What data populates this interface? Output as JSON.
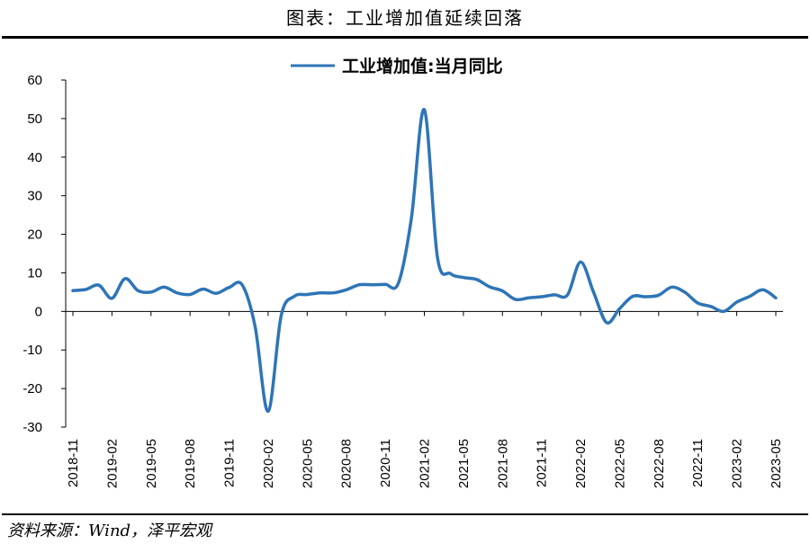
{
  "page_title": "图表：工业增加值延续回落",
  "source_note": "资料来源：Wind，泽平宏观",
  "colors": {
    "series": "#2e75b6",
    "axis": "#000000",
    "rule": "#000000"
  },
  "chart_data": {
    "type": "line",
    "title": "",
    "xlabel": "",
    "ylabel": "",
    "ylim": [
      -30,
      60
    ],
    "yticks": [
      -30,
      -20,
      -10,
      0,
      10,
      20,
      30,
      40,
      50,
      60
    ],
    "grid": false,
    "legend_position": "top-center",
    "x": [
      "2018-11",
      "2018-12",
      "2019-01",
      "2019-02",
      "2019-03",
      "2019-04",
      "2019-05",
      "2019-06",
      "2019-07",
      "2019-08",
      "2019-09",
      "2019-10",
      "2019-11",
      "2019-12",
      "2020-01",
      "2020-02",
      "2020-03",
      "2020-04",
      "2020-05",
      "2020-06",
      "2020-07",
      "2020-08",
      "2020-09",
      "2020-10",
      "2020-11",
      "2020-12",
      "2021-01",
      "2021-02",
      "2021-03",
      "2021-04",
      "2021-05",
      "2021-06",
      "2021-07",
      "2021-08",
      "2021-09",
      "2021-10",
      "2021-11",
      "2021-12",
      "2022-01",
      "2022-02",
      "2022-03",
      "2022-04",
      "2022-05",
      "2022-06",
      "2022-07",
      "2022-08",
      "2022-09",
      "2022-10",
      "2022-11",
      "2022-12",
      "2023-01",
      "2023-02",
      "2023-03",
      "2023-04",
      "2023-05"
    ],
    "x_tick_labels": [
      "2018-11",
      "2019-02",
      "2019-05",
      "2019-08",
      "2019-11",
      "2020-02",
      "2020-05",
      "2020-08",
      "2020-11",
      "2021-02",
      "2021-05",
      "2021-08",
      "2021-11",
      "2022-02",
      "2022-05",
      "2022-08",
      "2022-11",
      "2023-02",
      "2023-05"
    ],
    "series": [
      {
        "name": "工业增加值:当月同比",
        "values": [
          5.4,
          5.7,
          6.8,
          3.4,
          8.5,
          5.4,
          5.0,
          6.3,
          4.8,
          4.4,
          5.8,
          4.7,
          6.2,
          6.9,
          -4.0,
          -25.9,
          -1.1,
          3.9,
          4.4,
          4.8,
          4.8,
          5.6,
          6.9,
          6.9,
          7.0,
          7.3,
          24.0,
          52.3,
          14.1,
          9.8,
          8.8,
          8.3,
          6.4,
          5.3,
          3.1,
          3.5,
          3.8,
          4.3,
          4.3,
          12.8,
          5.0,
          -2.9,
          0.7,
          3.9,
          3.8,
          4.2,
          6.3,
          5.0,
          2.2,
          1.3,
          0.0,
          2.4,
          3.9,
          5.6,
          3.5
        ]
      }
    ]
  }
}
